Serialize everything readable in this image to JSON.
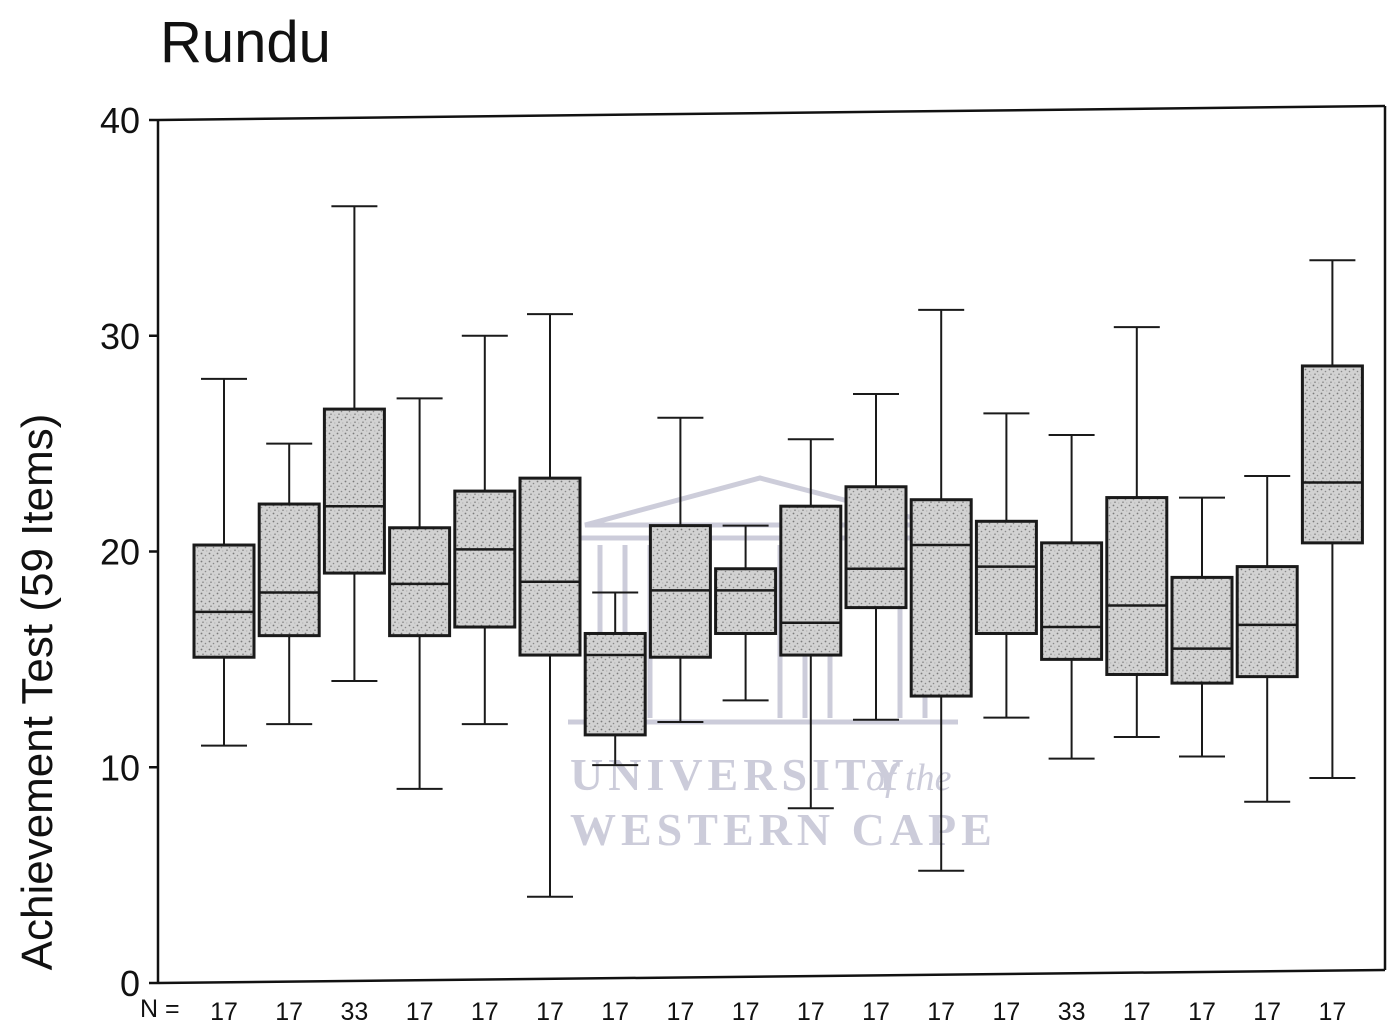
{
  "chart_data": {
    "type": "boxplot",
    "title": "Rundu",
    "ylabel": "Achievement Test (59 Items)",
    "xlabel": "",
    "ylim": [
      0,
      40
    ],
    "yticks": [
      "0",
      "10",
      "20",
      "30",
      "40"
    ],
    "n_prefix": "N =",
    "grid": false,
    "boxes": [
      {
        "n": "17",
        "min": 11.0,
        "q1": 15.1,
        "median": 17.2,
        "q3": 20.3,
        "max": 28.0
      },
      {
        "n": "17",
        "min": 12.0,
        "q1": 16.1,
        "median": 18.1,
        "q3": 22.2,
        "max": 25.0
      },
      {
        "n": "33",
        "min": 14.0,
        "q1": 19.0,
        "median": 22.1,
        "q3": 26.6,
        "max": 36.0
      },
      {
        "n": "17",
        "min": 9.0,
        "q1": 16.1,
        "median": 18.5,
        "q3": 21.1,
        "max": 27.1
      },
      {
        "n": "17",
        "min": 12.0,
        "q1": 16.5,
        "median": 20.1,
        "q3": 22.8,
        "max": 30.0
      },
      {
        "n": "17",
        "min": 4.0,
        "q1": 15.2,
        "median": 18.6,
        "q3": 23.4,
        "max": 31.0
      },
      {
        "n": "17",
        "min": 10.1,
        "q1": 11.5,
        "median": 15.2,
        "q3": 16.2,
        "max": 18.1
      },
      {
        "n": "17",
        "min": 12.1,
        "q1": 15.1,
        "median": 18.2,
        "q3": 21.2,
        "max": 26.2
      },
      {
        "n": "17",
        "min": 13.1,
        "q1": 16.2,
        "median": 18.2,
        "q3": 19.2,
        "max": 21.2
      },
      {
        "n": "17",
        "min": 8.1,
        "q1": 15.2,
        "median": 16.7,
        "q3": 22.1,
        "max": 25.2
      },
      {
        "n": "17",
        "min": 12.2,
        "q1": 17.4,
        "median": 19.2,
        "q3": 23.0,
        "max": 27.3
      },
      {
        "n": "17",
        "min": 5.2,
        "q1": 13.3,
        "median": 20.3,
        "q3": 22.4,
        "max": 31.2
      },
      {
        "n": "17",
        "min": 12.3,
        "q1": 16.2,
        "median": 19.3,
        "q3": 21.4,
        "max": 26.4
      },
      {
        "n": "33",
        "min": 10.4,
        "q1": 15.0,
        "median": 16.5,
        "q3": 20.4,
        "max": 25.4
      },
      {
        "n": "17",
        "min": 11.4,
        "q1": 14.3,
        "median": 17.5,
        "q3": 22.5,
        "max": 30.4
      },
      {
        "n": "17",
        "min": 10.5,
        "q1": 13.9,
        "median": 15.5,
        "q3": 18.8,
        "max": 22.5
      },
      {
        "n": "17",
        "min": 8.4,
        "q1": 14.2,
        "median": 16.6,
        "q3": 19.3,
        "max": 23.5
      },
      {
        "n": "17",
        "min": 9.5,
        "q1": 20.4,
        "median": 23.2,
        "q3": 28.6,
        "max": 33.5
      }
    ]
  },
  "watermark": {
    "line1": "UNIVERSITY",
    "line1_suffix": "of the",
    "line2": "WESTERN CAPE",
    "color": "#c4c4d4"
  },
  "colors": {
    "box_fill": "#cfcfcf",
    "stroke": "#1a1a1a"
  }
}
